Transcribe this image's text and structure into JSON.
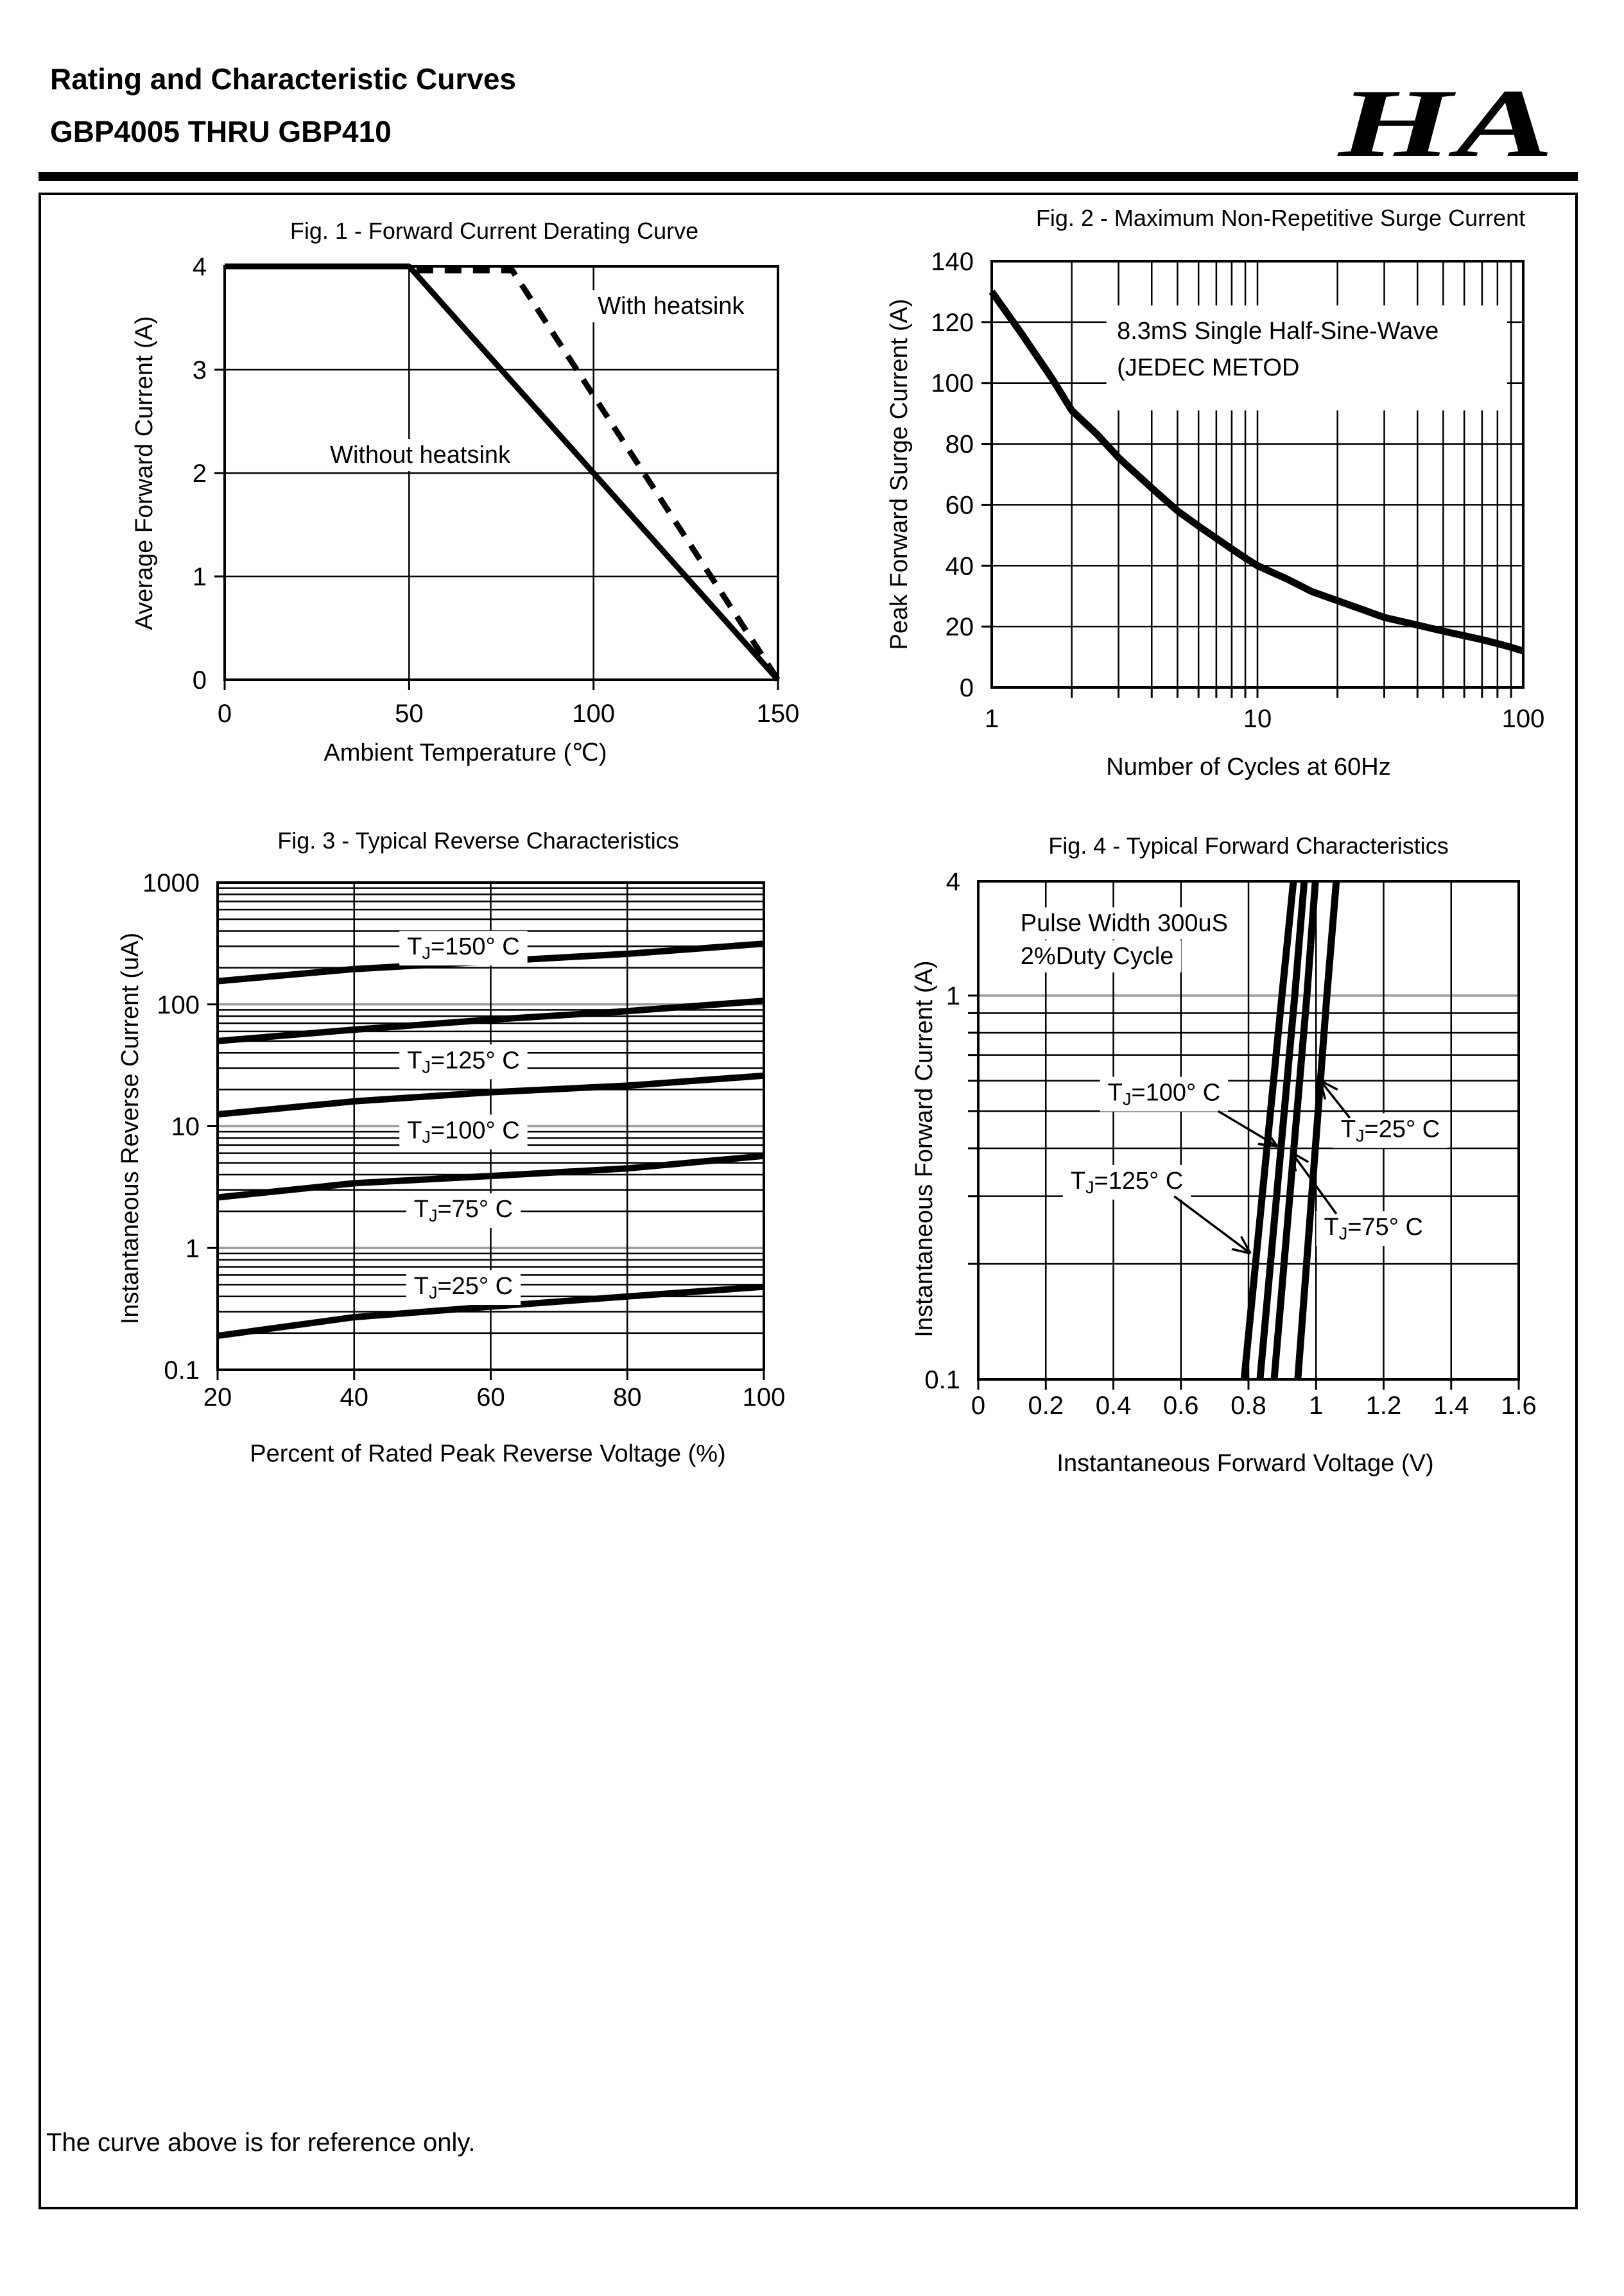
{
  "header": {
    "title": "Rating and Characteristic Curves",
    "subtitle": "GBP4005 THRU GBP410",
    "logo": "HA"
  },
  "footer": {
    "note": "The curve above is for reference only."
  },
  "colors": {
    "ink": "#000000",
    "gray_grid": "#9e9e9e",
    "background": "#ffffff"
  },
  "chart_data": [
    {
      "id": "fig1",
      "type": "line",
      "title": "Fig. 1 - Forward Current Derating Curve",
      "xlabel": "Ambient Temperature (℃)",
      "ylabel": "Average Forward Current (A)",
      "x": {
        "scale": "linear",
        "min": 0,
        "max": 150,
        "tickvals": [
          0,
          50,
          100,
          150
        ],
        "ticklabels": [
          "0",
          "50",
          "100",
          "150"
        ],
        "grid": [
          50,
          100
        ]
      },
      "y": {
        "scale": "linear",
        "min": 0,
        "max": 4,
        "tickvals": [
          4,
          3,
          2,
          1,
          0
        ],
        "ticklabels": [
          "4",
          "3",
          "2",
          "1",
          "0"
        ],
        "grid": [
          1,
          2,
          3
        ]
      },
      "series": [
        {
          "name": "Without heatsink",
          "dash": false,
          "width": 9,
          "points": [
            [
              0,
              4
            ],
            [
              50,
              4
            ],
            [
              150,
              0
            ]
          ]
        },
        {
          "name": "With heatsink",
          "dash": true,
          "width": 9,
          "points": [
            [
              52,
              3.96
            ],
            [
              78,
              3.96
            ],
            [
              150,
              0
            ]
          ]
        }
      ],
      "labels": [
        {
          "text": "With heatsink",
          "x": 121,
          "y": 3.62
        },
        {
          "text": "Without heatsink",
          "x": 53,
          "y": 2.18
        }
      ]
    },
    {
      "id": "fig2",
      "type": "line",
      "title": "Fig. 2 - Maximum Non-Repetitive Surge Current",
      "xlabel": "Number of Cycles at 60Hz",
      "ylabel": "Peak Forward Surge Current (A)",
      "x": {
        "scale": "log",
        "min": 1,
        "max": 100,
        "tickvals": [
          1,
          10,
          100
        ],
        "ticklabels": [
          "1",
          "10",
          "100"
        ],
        "logGrid": true
      },
      "y": {
        "scale": "linear",
        "min": 0,
        "max": 140,
        "tickvals": [
          140,
          120,
          100,
          80,
          60,
          40,
          20,
          0
        ],
        "ticklabels": [
          "140",
          "120",
          "100",
          "80",
          "60",
          "40",
          "20",
          "0"
        ],
        "grid": [
          20,
          40,
          60,
          80,
          100,
          120
        ]
      },
      "series": [
        {
          "name": "Peak Forward Surge Current",
          "dash": false,
          "width": 11,
          "points": [
            [
              1,
              130
            ],
            [
              1.3,
              116
            ],
            [
              1.7,
              101
            ],
            [
              2,
              91
            ],
            [
              2.5,
              83
            ],
            [
              3,
              75.5
            ],
            [
              4,
              65.5
            ],
            [
              5,
              58
            ],
            [
              6,
              53
            ],
            [
              7,
              49
            ],
            [
              8,
              45.5
            ],
            [
              9,
              42.5
            ],
            [
              10,
              40
            ],
            [
              13,
              35.5
            ],
            [
              16,
              31.5
            ],
            [
              20,
              28.5
            ],
            [
              25,
              25.5
            ],
            [
              30,
              23
            ],
            [
              40,
              20.5
            ],
            [
              50,
              18.5
            ],
            [
              60,
              17
            ],
            [
              70,
              15.7
            ],
            [
              85,
              13.8
            ],
            [
              100,
              12
            ]
          ]
        }
      ],
      "annotation": {
        "lines": [
          "8.3mS Single Half-Sine-Wave",
          "(JEDEC METOD"
        ],
        "box": {
          "x1": 2.7,
          "y1": 91,
          "x2": 87,
          "y2": 125.5
        },
        "text_x": 2.96,
        "baselines": [
          114.5,
          102.5
        ]
      }
    },
    {
      "id": "fig3",
      "type": "line",
      "title": "Fig. 3 - Typical Reverse Characteristics",
      "xlabel": "Percent of Rated Peak Reverse Voltage (%)",
      "ylabel": "Instantaneous Reverse Current (uA)",
      "x": {
        "scale": "linear",
        "min": 20,
        "max": 100,
        "tickvals": [
          20,
          40,
          60,
          80,
          100
        ],
        "ticklabels": [
          "20",
          "40",
          "60",
          "80",
          "100"
        ],
        "grid": [
          40,
          60,
          80
        ]
      },
      "y": {
        "scale": "log",
        "min": 0.1,
        "max": 1000,
        "tickvals": [
          1000,
          100,
          10,
          1,
          0.1
        ],
        "ticklabels": [
          "1000",
          "100",
          "10",
          "1",
          "0.1"
        ],
        "gray": [
          100,
          10,
          1
        ],
        "logMinor": true
      },
      "series": [
        {
          "name": "T_J=150° C",
          "dash": false,
          "width": 10,
          "points": [
            [
              20,
              155
            ],
            [
              40,
              195
            ],
            [
              60,
              225
            ],
            [
              80,
              260
            ],
            [
              100,
              315
            ]
          ]
        },
        {
          "name": "T_J=125° C",
          "dash": false,
          "width": 10,
          "points": [
            [
              20,
              50
            ],
            [
              40,
              62
            ],
            [
              60,
              75
            ],
            [
              80,
              88
            ],
            [
              100,
              107
            ]
          ]
        },
        {
          "name": "T_J=100° C",
          "dash": false,
          "width": 10,
          "points": [
            [
              20,
              12.5
            ],
            [
              40,
              16
            ],
            [
              60,
              19
            ],
            [
              80,
              21.5
            ],
            [
              100,
              26
            ]
          ]
        },
        {
          "name": "T_J=75° C",
          "dash": false,
          "width": 10,
          "points": [
            [
              20,
              2.6
            ],
            [
              40,
              3.4
            ],
            [
              60,
              3.9
            ],
            [
              80,
              4.5
            ],
            [
              100,
              5.7
            ]
          ]
        },
        {
          "name": "T_J=25° C",
          "dash": false,
          "width": 10,
          "points": [
            [
              20,
              0.19
            ],
            [
              40,
              0.27
            ],
            [
              60,
              0.33
            ],
            [
              80,
              0.4
            ],
            [
              100,
              0.48
            ]
          ]
        }
      ],
      "labels": [
        {
          "text": "T_J=150° C",
          "x": 56,
          "y": 300
        },
        {
          "text": "T_J=125° C",
          "x": 56,
          "y": 35
        },
        {
          "text": "T_J=100° C",
          "x": 56,
          "y": 9.3
        },
        {
          "text": "T_J=75° C",
          "x": 56,
          "y": 2.1
        },
        {
          "text": "T_J=25° C",
          "x": 56,
          "y": 0.49
        }
      ]
    },
    {
      "id": "fig4",
      "type": "line",
      "title": "Fig. 4 - Typical Forward Characteristics",
      "xlabel": "Instantaneous Forward Voltage (V)",
      "ylabel": "Instantaneous Forward Current (A)",
      "x": {
        "scale": "linear",
        "min": 0,
        "max": 1.6,
        "tickvals": [
          0,
          0.2,
          0.4,
          0.6,
          0.8,
          1,
          1.2,
          1.4,
          1.6
        ],
        "ticklabels": [
          "0",
          "0.2",
          "0.4",
          "0.6",
          "0.8",
          "1",
          "1.2",
          "1.4",
          "1.6"
        ],
        "grid": [
          0.2,
          0.4,
          0.6,
          0.8,
          1,
          1.2,
          1.4
        ]
      },
      "y": {
        "scale": "log-compressed",
        "min": 0.1,
        "max": 4,
        "tickvals": [
          4,
          1,
          0.1
        ],
        "ticklabels": [
          "4",
          "1",
          "0.1"
        ],
        "gray": [
          1
        ],
        "minors": [
          0.2,
          0.3,
          0.4,
          0.5,
          0.6,
          0.7,
          0.8,
          0.9
        ]
      },
      "series": [
        {
          "name": "T_J=125° C",
          "dash": false,
          "width": 11,
          "points": [
            [
              0.787,
              0.1
            ],
            [
              0.899,
              1
            ],
            [
              0.933,
              4
            ]
          ]
        },
        {
          "name": "T_J=100° C",
          "dash": false,
          "width": 11,
          "points": [
            [
              0.834,
              0.1
            ],
            [
              0.937,
              1
            ],
            [
              0.965,
              4
            ]
          ]
        },
        {
          "name": "T_J=75° C",
          "dash": false,
          "width": 11,
          "points": [
            [
              0.876,
              0.1
            ],
            [
              0.973,
              1
            ],
            [
              0.998,
              4
            ]
          ]
        },
        {
          "name": "T_J=25° C",
          "dash": false,
          "width": 11,
          "points": [
            [
              0.946,
              0.1
            ],
            [
              1.032,
              1
            ],
            [
              1.06,
              4
            ]
          ]
        }
      ],
      "labels": [
        {
          "text": "Pulse Width 300uS",
          "x": 0.125,
          "y": 2.42,
          "align": "start"
        },
        {
          "text": "2%Duty Cycle",
          "x": 0.125,
          "y": 1.62,
          "align": "start"
        },
        {
          "text": "T_J=100° C",
          "x": 0.55,
          "y": 0.56
        },
        {
          "text": "T_J=25° C",
          "x": 1.22,
          "y": 0.45
        },
        {
          "text": "T_J=125° C",
          "x": 0.44,
          "y": 0.33
        },
        {
          "text": "T_J=75° C",
          "x": 1.17,
          "y": 0.25
        }
      ],
      "arrows": [
        {
          "from": [
            0.71,
            0.5
          ],
          "to": [
            0.885,
            0.405
          ]
        },
        {
          "from": [
            1.1,
            0.48
          ],
          "to": [
            1.013,
            0.6
          ]
        },
        {
          "from": [
            0.58,
            0.3
          ],
          "to": [
            0.806,
            0.213
          ]
        },
        {
          "from": [
            1.06,
            0.27
          ],
          "to": [
            0.928,
            0.39
          ]
        }
      ]
    }
  ]
}
